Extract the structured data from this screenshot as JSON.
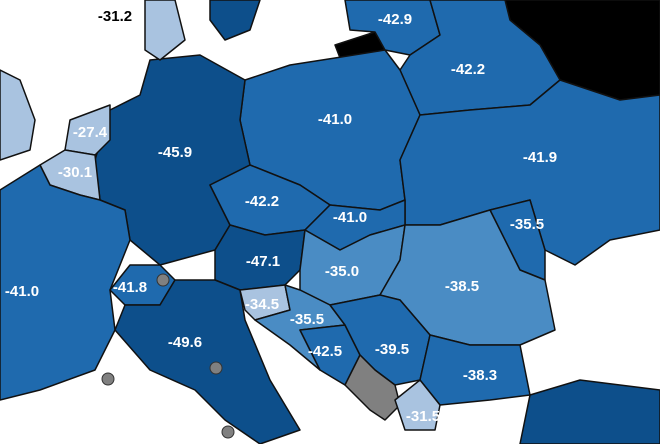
{
  "map": {
    "regions": [
      {
        "label": "-31.2"
      },
      {
        "label": "-42.9"
      },
      {
        "label": "-42.2"
      },
      {
        "label": "-41.0"
      },
      {
        "label": "-41.9"
      },
      {
        "label": "-45.9"
      },
      {
        "label": "-27.4"
      },
      {
        "label": "-30.1"
      },
      {
        "label": "-42.2"
      },
      {
        "label": "-41.0"
      },
      {
        "label": "-35.5"
      },
      {
        "label": "-47.1"
      },
      {
        "label": "-35.0"
      },
      {
        "label": "-38.5"
      },
      {
        "label": "-41.0"
      },
      {
        "label": "-41.8"
      },
      {
        "label": "-34.5"
      },
      {
        "label": "-35.5"
      },
      {
        "label": "-49.6"
      },
      {
        "label": "-42.5"
      },
      {
        "label": "-39.5"
      },
      {
        "label": "-38.3"
      },
      {
        "label": "-31.5"
      }
    ]
  }
}
